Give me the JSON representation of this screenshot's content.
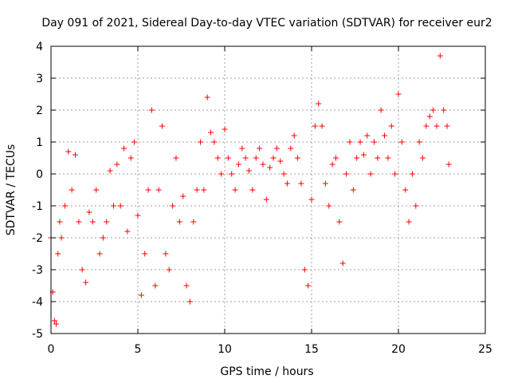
{
  "chart_data": {
    "type": "scatter",
    "title": "Day 091 of 2021, Sidereal Day-to-day VTEC variation (SDTVAR) for receiver eur2",
    "xlabel": "GPS time / hours",
    "ylabel": "SDTVAR / TECUs",
    "xlim": [
      0,
      25
    ],
    "ylim": [
      -5,
      4
    ],
    "xticks": [
      0,
      5,
      10,
      15,
      20,
      25
    ],
    "yticks": [
      -5,
      -4,
      -3,
      -2,
      -1,
      0,
      1,
      2,
      3,
      4
    ],
    "grid": true,
    "marker": "+",
    "series": [
      {
        "name": "SDTVAR",
        "color": "#ff0000",
        "x": [
          0.0,
          0.1,
          0.2,
          0.3,
          0.4,
          0.5,
          0.6,
          0.8,
          1.0,
          1.2,
          1.4,
          1.6,
          1.8,
          2.0,
          2.2,
          2.4,
          2.6,
          2.8,
          3.0,
          3.2,
          3.4,
          3.6,
          3.8,
          4.0,
          4.2,
          4.4,
          4.6,
          4.8,
          5.0,
          5.2,
          5.4,
          5.6,
          5.8,
          6.0,
          6.2,
          6.4,
          6.6,
          6.8,
          7.0,
          7.2,
          7.4,
          7.6,
          7.8,
          8.0,
          8.2,
          8.4,
          8.6,
          8.8,
          9.0,
          9.2,
          9.4,
          9.6,
          9.8,
          10.0,
          10.2,
          10.4,
          10.6,
          10.8,
          11.0,
          11.2,
          11.4,
          11.6,
          11.8,
          12.0,
          12.2,
          12.4,
          12.6,
          12.8,
          13.0,
          13.2,
          13.4,
          13.6,
          13.8,
          14.0,
          14.2,
          14.4,
          14.6,
          14.8,
          15.0,
          15.2,
          15.4,
          15.6,
          15.8,
          16.0,
          16.2,
          16.4,
          16.6,
          16.8,
          17.0,
          17.2,
          17.4,
          17.6,
          17.8,
          18.0,
          18.2,
          18.4,
          18.6,
          18.8,
          19.0,
          19.2,
          19.4,
          19.6,
          19.8,
          20.0,
          20.2,
          20.4,
          20.6,
          20.8,
          21.0,
          21.2,
          21.4,
          21.6,
          21.8,
          22.0,
          22.2,
          22.4,
          22.6,
          22.8,
          22.9
        ],
        "y": [
          -2.0,
          -3.7,
          -4.6,
          -4.7,
          -2.5,
          -1.5,
          -2.0,
          -1.0,
          0.7,
          -0.5,
          0.6,
          -1.5,
          -3.0,
          -3.4,
          -1.2,
          -1.5,
          -0.5,
          -2.5,
          -2.0,
          -1.5,
          0.1,
          -1.0,
          0.3,
          -1.0,
          0.8,
          -1.8,
          0.5,
          1.0,
          -1.3,
          -3.8,
          -2.5,
          -0.5,
          2.0,
          -3.5,
          -0.5,
          1.5,
          -2.5,
          -3.0,
          -1.0,
          0.5,
          -1.5,
          -0.7,
          -3.5,
          -4.0,
          -1.5,
          -0.5,
          1.0,
          -0.5,
          2.4,
          1.3,
          1.0,
          0.5,
          0.0,
          1.4,
          0.5,
          0.0,
          -0.5,
          0.3,
          0.8,
          0.5,
          0.1,
          -0.5,
          0.5,
          0.8,
          0.3,
          -0.8,
          0.2,
          0.5,
          0.8,
          0.4,
          0.0,
          -0.3,
          0.8,
          1.2,
          0.5,
          -0.3,
          -3.0,
          -3.5,
          -0.8,
          1.5,
          2.2,
          1.5,
          -0.3,
          -1.0,
          0.3,
          0.5,
          -1.5,
          -2.8,
          0.0,
          1.0,
          -0.5,
          0.5,
          1.0,
          0.6,
          1.2,
          0.0,
          1.0,
          0.5,
          2.0,
          1.2,
          0.5,
          1.5,
          0.0,
          2.5,
          1.0,
          -0.5,
          -1.5,
          0.0,
          -1.0,
          1.0,
          0.5,
          1.5,
          1.8,
          2.0,
          1.5,
          3.7,
          2.0,
          1.5,
          0.3
        ]
      }
    ]
  }
}
